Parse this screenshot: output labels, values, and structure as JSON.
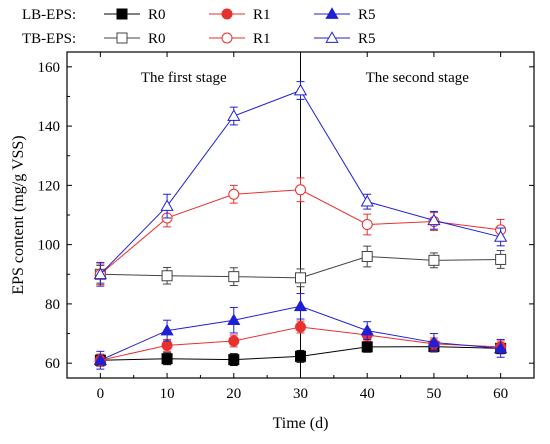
{
  "chart_data": {
    "type": "line",
    "xlabel": "Time (d)",
    "ylabel": "EPS content (mg/g VSS)",
    "xlim": [
      -5,
      65
    ],
    "ylim": [
      55,
      165
    ],
    "xticks": [
      0,
      10,
      20,
      30,
      40,
      50,
      60
    ],
    "yticks": [
      60,
      80,
      100,
      120,
      140,
      160
    ],
    "x": [
      0,
      10,
      20,
      30,
      40,
      50,
      60
    ],
    "annotations": {
      "stage1": "The first stage",
      "stage2": "The second stage",
      "divider_x": 30
    },
    "legend": {
      "placement": "top",
      "groups": [
        {
          "label": "LB-EPS:",
          "filled": true,
          "names": [
            "R0",
            "R1",
            "R5"
          ]
        },
        {
          "label": "TB-EPS:",
          "filled": false,
          "names": [
            "R0",
            "R1",
            "R5"
          ]
        }
      ]
    },
    "series": [
      {
        "group": "LB-EPS",
        "name": "R0",
        "color": "#000000",
        "marker": "square",
        "filled": true,
        "values": [
          61,
          61.5,
          61.2,
          62.3,
          65.5,
          65.6,
          65
        ],
        "errors": [
          2,
          2,
          2,
          2,
          1.8,
          1.8,
          1.8
        ]
      },
      {
        "group": "LB-EPS",
        "name": "R1",
        "color": "#e8312f",
        "marker": "circle",
        "filled": true,
        "values": [
          61,
          66,
          67.5,
          72.2,
          69.5,
          66.5,
          65.5
        ],
        "errors": [
          2,
          2,
          2,
          2,
          2,
          2,
          2
        ]
      },
      {
        "group": "LB-EPS",
        "name": "R5",
        "color": "#1f1fd6",
        "marker": "triangle",
        "filled": true,
        "values": [
          61,
          71,
          74.5,
          79.2,
          71,
          67,
          65
        ],
        "errors": [
          3,
          3.5,
          4.3,
          4.3,
          3,
          3,
          3
        ]
      },
      {
        "group": "TB-EPS",
        "name": "R0",
        "color": "#444444",
        "marker": "square",
        "filled": false,
        "values": [
          90,
          89.5,
          89.2,
          88.8,
          96,
          94.7,
          95
        ],
        "errors": [
          3,
          2.8,
          3,
          3,
          3.5,
          2.5,
          3
        ]
      },
      {
        "group": "TB-EPS",
        "name": "R1",
        "color": "#e8312f",
        "marker": "circle",
        "filled": false,
        "values": [
          90,
          109,
          117,
          118.5,
          106.8,
          107.8,
          105
        ],
        "errors": [
          3.5,
          3,
          3,
          4,
          3.5,
          3,
          3.5
        ]
      },
      {
        "group": "TB-EPS",
        "name": "R5",
        "color": "#1f1fd6",
        "marker": "triangle",
        "filled": false,
        "values": [
          90,
          113,
          143.4,
          152,
          114.5,
          108.2,
          102.6
        ],
        "errors": [
          4,
          4,
          3,
          3,
          2.5,
          3,
          3
        ]
      }
    ]
  }
}
